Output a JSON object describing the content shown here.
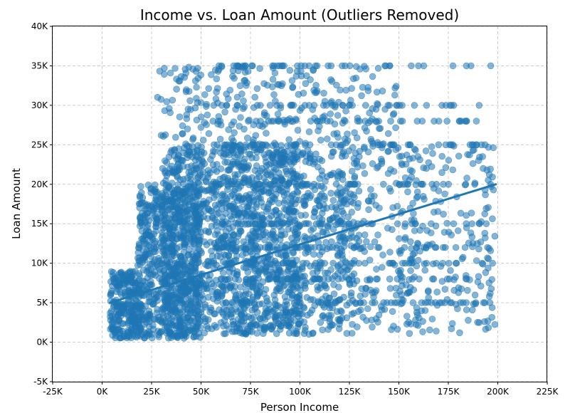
{
  "chart_data": {
    "type": "scatter",
    "title": "Income vs. Loan Amount (Outliers Removed)",
    "xlabel": "Person Income",
    "ylabel": "Loan Amount",
    "xlim": [
      -25000,
      225000
    ],
    "ylim": [
      -5000,
      40000
    ],
    "x_ticks": [
      -25000,
      0,
      25000,
      50000,
      75000,
      100000,
      125000,
      150000,
      175000,
      200000,
      225000
    ],
    "x_tick_labels": [
      "-25K",
      "0K",
      "25K",
      "50K",
      "75K",
      "100K",
      "125K",
      "150K",
      "175K",
      "200K",
      "225K"
    ],
    "y_ticks": [
      -5000,
      0,
      5000,
      10000,
      15000,
      20000,
      25000,
      30000,
      35000,
      40000
    ],
    "y_tick_labels": [
      "-5K",
      "0K",
      "5K",
      "10K",
      "15K",
      "20K",
      "25K",
      "30K",
      "35K",
      "40K"
    ],
    "grid": true,
    "point_color": "#1f77b4",
    "point_alpha": 0.55,
    "trend_line": {
      "x": [
        4000,
        199000
      ],
      "y": [
        5000,
        20000
      ]
    },
    "point_density": [
      {
        "x_range": [
          4000,
          20000
        ],
        "y_range": [
          500,
          9000
        ],
        "count": 260
      },
      {
        "x_range": [
          18000,
          50000
        ],
        "y_range": [
          500,
          20000
        ],
        "count": 700
      },
      {
        "x_range": [
          30000,
          100000
        ],
        "y_range": [
          1000,
          25000
        ],
        "count": 1100
      },
      {
        "x_range": [
          60000,
          130000
        ],
        "y_range": [
          1000,
          25000
        ],
        "count": 500
      },
      {
        "x_range": [
          100000,
          160000
        ],
        "y_range": [
          1000,
          25000
        ],
        "count": 260
      },
      {
        "x_range": [
          150000,
          199000
        ],
        "y_range": [
          1000,
          25000
        ],
        "count": 200
      },
      {
        "x_range": [
          28000,
          150000
        ],
        "y_range": [
          25000,
          35000
        ],
        "count": 260
      }
    ],
    "rows_y": [
      35000,
      30000,
      28000,
      25000,
      20000,
      15000,
      12000,
      10000,
      8000,
      5000
    ],
    "rows_x_range": [
      55000,
      198000
    ]
  }
}
